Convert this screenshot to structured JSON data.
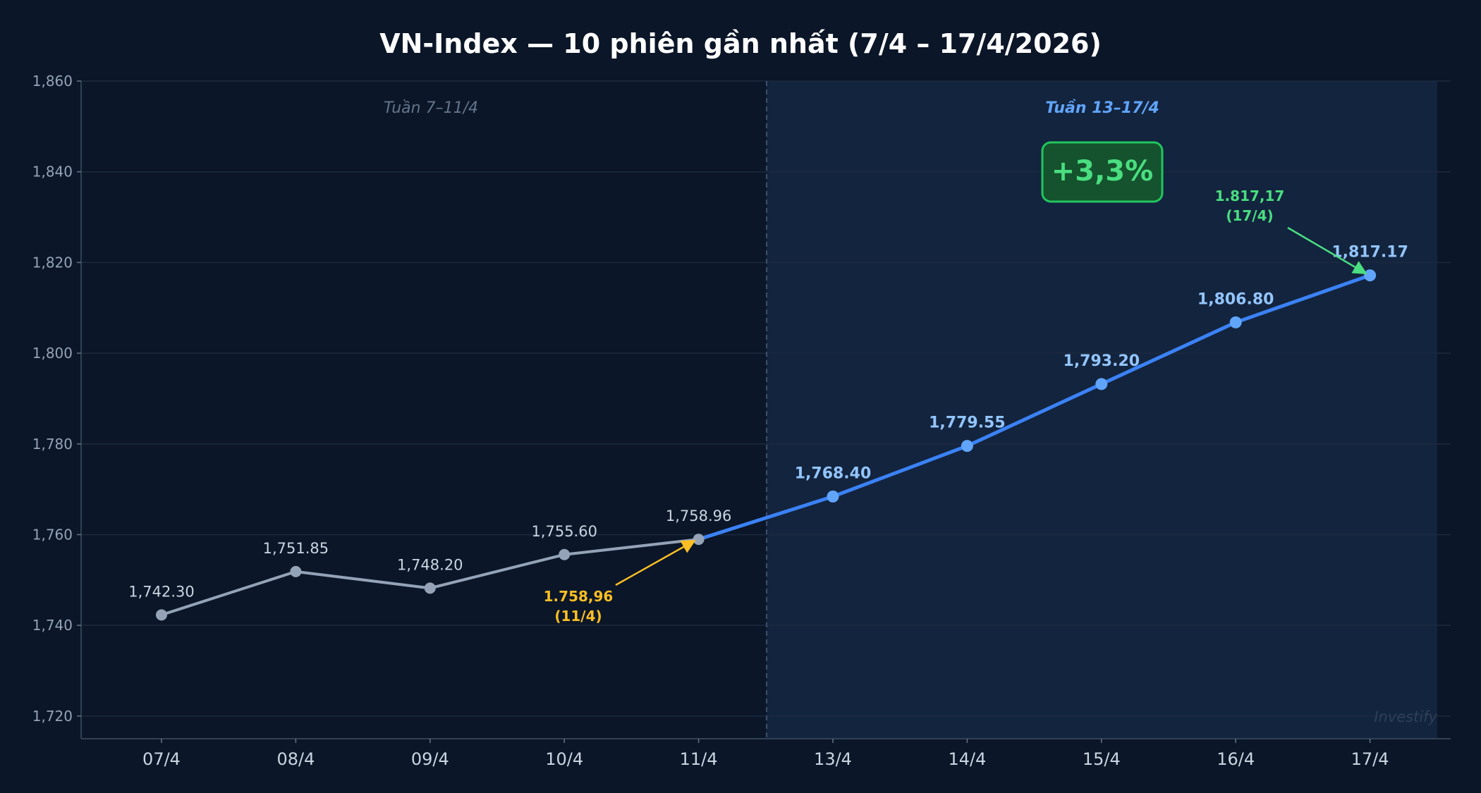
{
  "chart_data": {
    "type": "line",
    "title": "VN-Index — 10 phiên gần nhất (7/4 – 17/4/2026)",
    "categories": [
      "07/4",
      "08/4",
      "09/4",
      "10/4",
      "11/4",
      "13/4",
      "14/4",
      "15/4",
      "16/4",
      "17/4"
    ],
    "series": [
      {
        "values": [
          1742.3,
          1751.85,
          1748.2,
          1755.6,
          1758.96,
          1768.4,
          1779.55,
          1793.2,
          1806.8,
          1817.17
        ]
      }
    ],
    "data_labels": [
      "1,742.30",
      "1,751.85",
      "1,748.20",
      "1,755.60",
      "1,758.96",
      "1,768.40",
      "1,779.55",
      "1,793.20",
      "1,806.80",
      "1,817.17"
    ],
    "ylim": [
      1715,
      1860
    ],
    "yticks": [
      1720,
      1740,
      1760,
      1780,
      1800,
      1820,
      1840,
      1860
    ],
    "ytick_labels": [
      "1,720",
      "1,740",
      "1,760",
      "1,780",
      "1,800",
      "1,820",
      "1,840",
      "1,860"
    ],
    "grid": true,
    "regions": [
      {
        "label": "Tuần 7–11/4"
      },
      {
        "label": "Tuần 13–17/4"
      }
    ],
    "annotations": {
      "start": {
        "line1": "1.758,96",
        "line2": "(11/4)"
      },
      "end": {
        "line1": "1.817,17",
        "line2": "(17/4)"
      },
      "change_badge": "+3,3%"
    },
    "watermark": "Investify",
    "colors": {
      "background": "#0b1628",
      "week1_line": "#94a3b8",
      "week2_line": "#3b82f6",
      "week2_point": "#60a5fa",
      "week2_label": "#93c5fd",
      "start_annotation": "#fbbf24",
      "end_annotation": "#4ade80"
    }
  }
}
